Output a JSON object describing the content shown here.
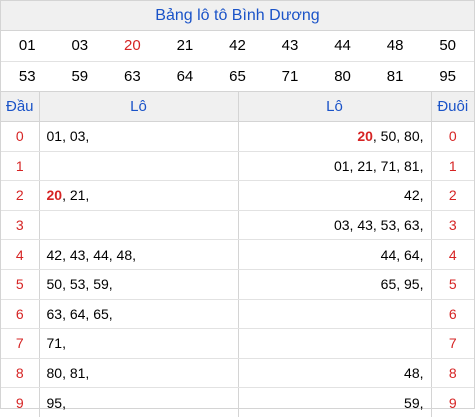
{
  "title": "Bảng lô tô Bình Dương",
  "numbers": [
    [
      "01",
      "03",
      "20",
      "21",
      "42",
      "43",
      "44",
      "48",
      "50"
    ],
    [
      "53",
      "59",
      "63",
      "64",
      "65",
      "71",
      "80",
      "81",
      "95"
    ]
  ],
  "highlight_number": "20",
  "headers": {
    "dau": "Đầu",
    "lo_left": "Lô",
    "lo_right": "Lô",
    "duoi": "Đuôi"
  },
  "rows": [
    {
      "dau": "0",
      "lo_left": [
        {
          "t": "01, "
        },
        {
          "t": "03,"
        }
      ],
      "lo_right": [
        {
          "t": "20",
          "h": true
        },
        {
          "t": ", 50, 80,"
        }
      ],
      "duoi": "0"
    },
    {
      "dau": "1",
      "lo_left": [],
      "lo_right": [
        {
          "t": "01, 21, 71, 81,"
        }
      ],
      "duoi": "1"
    },
    {
      "dau": "2",
      "lo_left": [
        {
          "t": "20",
          "h": true
        },
        {
          "t": ", 21,"
        }
      ],
      "lo_right": [
        {
          "t": "42,"
        }
      ],
      "duoi": "2"
    },
    {
      "dau": "3",
      "lo_left": [],
      "lo_right": [
        {
          "t": "03, 43, 53, 63,"
        }
      ],
      "duoi": "3"
    },
    {
      "dau": "4",
      "lo_left": [
        {
          "t": "42, 43, 44, 48,"
        }
      ],
      "lo_right": [
        {
          "t": "44, 64,"
        }
      ],
      "duoi": "4"
    },
    {
      "dau": "5",
      "lo_left": [
        {
          "t": "50, 53, 59,"
        }
      ],
      "lo_right": [
        {
          "t": "65, 95,"
        }
      ],
      "duoi": "5"
    },
    {
      "dau": "6",
      "lo_left": [
        {
          "t": "63, 64, 65,"
        }
      ],
      "lo_right": [],
      "duoi": "6"
    },
    {
      "dau": "7",
      "lo_left": [
        {
          "t": "71,"
        }
      ],
      "lo_right": [],
      "duoi": "7"
    },
    {
      "dau": "8",
      "lo_left": [
        {
          "t": "80, 81,"
        }
      ],
      "lo_right": [
        {
          "t": "48,"
        }
      ],
      "duoi": "8"
    },
    {
      "dau": "9",
      "lo_left": [
        {
          "t": "95,"
        }
      ],
      "lo_right": [
        {
          "t": "59,"
        }
      ],
      "duoi": "9"
    }
  ],
  "colors": {
    "title": "#1a53c8",
    "highlight": "#d62424",
    "header_bg": "#f0f0f0"
  }
}
